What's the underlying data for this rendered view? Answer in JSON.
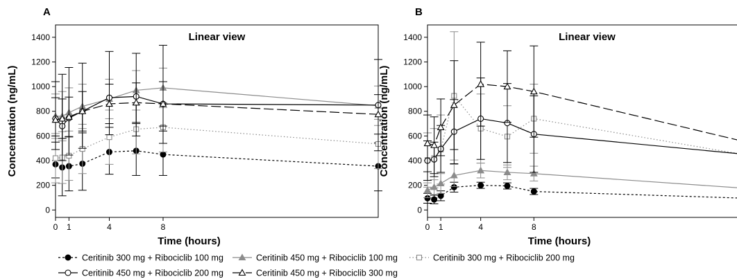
{
  "chart_data": {
    "type": "line",
    "ylabel": "Concentration (ng/mL)",
    "xlabel": "Time (hours)",
    "xticks": [
      0,
      1,
      4,
      8
    ],
    "yticks": [
      0,
      200,
      400,
      600,
      800,
      1000,
      1200,
      1400
    ],
    "xlim": [
      0,
      24
    ],
    "ylim": [
      -60,
      1500
    ],
    "legend_position": "bottom",
    "series_styles": [
      {
        "name": "Ceritinib 300 mg + Ribociclib 100 mg",
        "color": "#000000",
        "marker": "filled-circle",
        "dash": "3,3"
      },
      {
        "name": "Ceritinib 450 mg + Ribociclib 100 mg",
        "color": "#8c8c8c",
        "marker": "filled-triangle",
        "dash": ""
      },
      {
        "name": "Ceritinib 300 mg + Ribociclib 200 mg",
        "color": "#8c8c8c",
        "marker": "open-square",
        "dash": "1.5,3"
      },
      {
        "name": "Ceritinib 450 mg + Ribociclib 200 mg",
        "color": "#000000",
        "marker": "open-circle",
        "dash": ""
      },
      {
        "name": "Ceritinib 450 mg + Ribociclib 300 mg",
        "color": "#000000",
        "marker": "open-triangle",
        "dash": "14,5"
      }
    ],
    "panels": [
      {
        "letter": "A",
        "title": "Linear view",
        "series": [
          {
            "x": [
              0,
              0.5,
              1,
              2,
              4,
              6,
              8,
              24
            ],
            "y": [
              370,
              345,
              355,
              375,
              470,
              480,
              450,
              355
            ],
            "err_low": [
              110,
              230,
              200,
              215,
              180,
              200,
              170,
              200
            ],
            "err_high": [
              230,
              235,
              240,
              250,
              200,
              220,
              190,
              190
            ]
          },
          {
            "x": [
              0,
              0.5,
              1,
              2,
              4,
              6,
              8,
              24
            ],
            "y": [
              760,
              760,
              790,
              840,
              900,
              970,
              990,
              845
            ],
            "err_low": [
              180,
              200,
              200,
              180,
              160,
              160,
              160,
              160
            ],
            "err_high": [
              180,
              200,
              200,
              180,
              160,
              160,
              160,
              160
            ]
          },
          {
            "x": [
              0,
              0.5,
              1,
              2,
              4,
              6,
              8,
              24
            ],
            "y": [
              420,
              425,
              440,
              495,
              590,
              655,
              670,
              535
            ],
            "err_low": [
              200,
              210,
              200,
              200,
              220,
              200,
              200,
              200
            ],
            "err_high": [
              200,
              210,
              200,
              200,
              220,
              200,
              200,
              200
            ]
          },
          {
            "x": [
              0,
              0.5,
              1,
              2,
              4,
              6,
              8,
              24
            ],
            "y": [
              740,
              680,
              745,
              800,
              910,
              920,
              860,
              850
            ],
            "err_low": [
              250,
              280,
              300,
              300,
              300,
              320,
              320,
              370
            ],
            "err_high": [
              300,
              420,
              410,
              390,
              375,
              350,
              475,
              370
            ]
          },
          {
            "x": [
              0,
              0.5,
              1,
              2,
              4,
              6,
              8,
              24
            ],
            "y": [
              730,
              740,
              755,
              800,
              860,
              870,
              860,
              775
            ],
            "err_low": [
              180,
              160,
              160,
              160,
              160,
              160,
              180,
              160
            ],
            "err_high": [
              180,
              160,
              160,
              160,
              160,
              160,
              180,
              160
            ]
          }
        ]
      },
      {
        "letter": "B",
        "title": "Linear view",
        "series": [
          {
            "x": [
              0,
              0.5,
              1,
              2,
              4,
              6,
              8,
              24
            ],
            "y": [
              95,
              85,
              115,
              185,
              200,
              195,
              150,
              95
            ],
            "err_low": [
              40,
              35,
              40,
              40,
              25,
              25,
              25,
              25
            ],
            "err_high": [
              40,
              35,
              40,
              40,
              25,
              25,
              25,
              25
            ]
          },
          {
            "x": [
              0,
              0.5,
              1,
              2,
              4,
              6,
              8,
              24
            ],
            "y": [
              160,
              185,
              215,
              280,
              320,
              305,
              295,
              175
            ],
            "err_low": [
              60,
              60,
              80,
              90,
              60,
              60,
              60,
              55
            ],
            "err_high": [
              60,
              60,
              80,
              90,
              60,
              60,
              60,
              55
            ]
          },
          {
            "x": [
              0,
              0.5,
              1,
              2,
              4,
              6,
              8,
              24
            ],
            "y": [
              405,
              420,
              490,
              925,
              660,
              595,
              740,
              445
            ],
            "err_low": [
              220,
              240,
              280,
              520,
              280,
              250,
              280,
              300
            ],
            "err_high": [
              220,
              240,
              280,
              520,
              280,
              250,
              280,
              300
            ]
          },
          {
            "x": [
              0,
              0.5,
              1,
              2,
              4,
              6,
              8,
              24
            ],
            "y": [
              400,
              410,
              495,
              635,
              740,
              705,
              615,
              450
            ],
            "err_low": [
              160,
              140,
              190,
              260,
              330,
              320,
              310,
              300
            ],
            "err_high": [
              160,
              140,
              190,
              260,
              330,
              320,
              310,
              300
            ]
          },
          {
            "x": [
              0,
              0.5,
              1,
              2,
              4,
              6,
              8,
              24
            ],
            "y": [
              540,
              525,
              670,
              850,
              1020,
              1000,
              960,
              550
            ],
            "err_low": [
              230,
              230,
              230,
              360,
              340,
              290,
              370,
              240
            ],
            "err_high": [
              230,
              230,
              230,
              360,
              340,
              290,
              370,
              240
            ]
          }
        ]
      }
    ]
  }
}
